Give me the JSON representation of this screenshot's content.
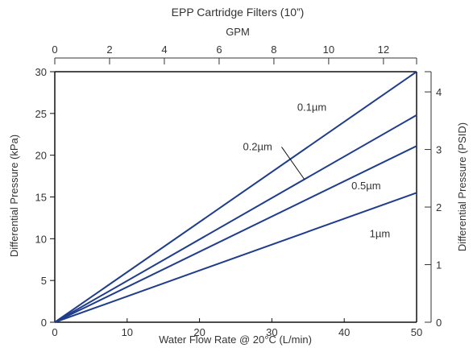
{
  "chart_data": {
    "type": "line",
    "title": "EPP Cartridge Filters (10”)",
    "xlabel": "Water Flow Rate @ 20°C (L/min)",
    "ylabel": "Differential Pressure (kPa)",
    "top_xlabel": "GPM",
    "right_ylabel": "Differential Pressure (PSID)",
    "xlim": [
      0,
      50
    ],
    "ylim": [
      0,
      30
    ],
    "top_xlim_gpm": [
      0,
      13.21
    ],
    "right_ylim_psid": [
      0,
      4.351
    ],
    "x_ticks": [
      0,
      10,
      20,
      30,
      40,
      50
    ],
    "y_ticks": [
      0,
      5,
      10,
      15,
      20,
      25,
      30
    ],
    "top_x_ticks": [
      0,
      2,
      4,
      6,
      8,
      10,
      12
    ],
    "right_y_ticks": [
      0,
      1,
      2,
      3,
      4
    ],
    "grid": false,
    "line_color": "#1f3d8a",
    "series": [
      {
        "name": "0.1µm",
        "x": [
          0,
          50
        ],
        "y": [
          0,
          30.0
        ],
        "label_at": [
          33.5,
          25.3
        ],
        "label_anchor": "start"
      },
      {
        "name": "0.2µm",
        "x": [
          0,
          50
        ],
        "y": [
          0,
          24.8
        ],
        "label_at": [
          26.0,
          20.6
        ],
        "label_anchor": "start",
        "leader_to": [
          34.5,
          17.1
        ]
      },
      {
        "name": "0.5µm",
        "x": [
          0,
          50
        ],
        "y": [
          0,
          21.1
        ],
        "label_at": [
          41.0,
          15.9
        ],
        "label_anchor": "start"
      },
      {
        "name": "1µm",
        "x": [
          0,
          50
        ],
        "y": [
          0,
          15.5
        ],
        "label_at": [
          43.5,
          10.2
        ],
        "label_anchor": "start"
      }
    ]
  }
}
